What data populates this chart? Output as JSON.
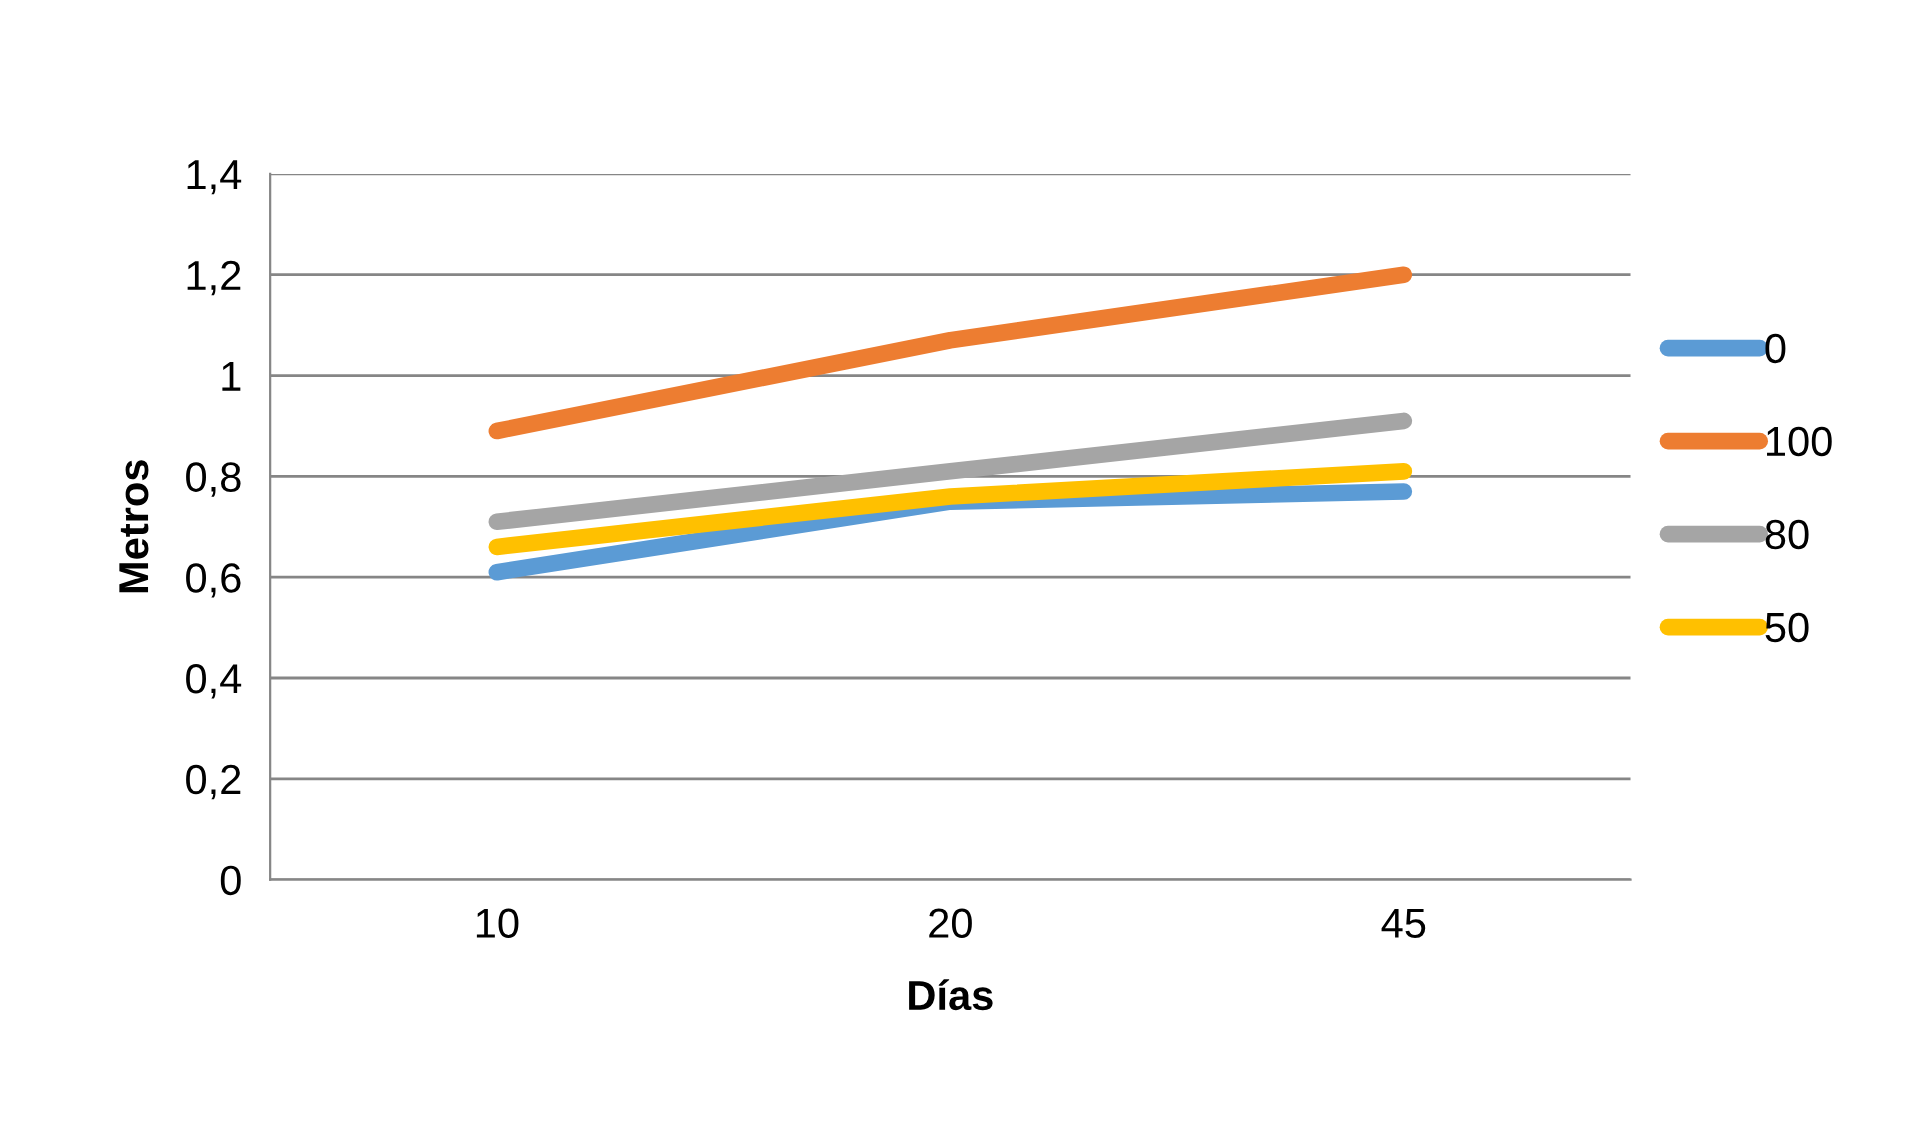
{
  "chart_data": {
    "type": "line",
    "xlabel": "Días",
    "ylabel": "Metros",
    "categories": [
      "10",
      "20",
      "45"
    ],
    "series": [
      {
        "name": "0",
        "color": "#5b9bd5",
        "values": [
          0.61,
          0.75,
          0.77
        ]
      },
      {
        "name": "100",
        "color": "#ed7d31",
        "values": [
          0.89,
          1.07,
          1.2
        ]
      },
      {
        "name": "80",
        "color": "#a5a5a5",
        "values": [
          0.71,
          0.81,
          0.91
        ]
      },
      {
        "name": "50",
        "color": "#ffc000",
        "values": [
          0.66,
          0.76,
          0.81
        ]
      }
    ],
    "ylim": [
      0,
      1.4
    ],
    "yticks": [
      {
        "value": 0,
        "label": "0"
      },
      {
        "value": 0.2,
        "label": "0,2"
      },
      {
        "value": 0.4,
        "label": "0,4"
      },
      {
        "value": 0.6,
        "label": "0,6"
      },
      {
        "value": 0.8,
        "label": "0,8"
      },
      {
        "value": 1,
        "label": "1"
      },
      {
        "value": 1.2,
        "label": "1,2"
      },
      {
        "value": 1.4,
        "label": "1,4"
      }
    ],
    "grid": "y",
    "legend": "right",
    "marker": "none",
    "line_style": "solid"
  }
}
